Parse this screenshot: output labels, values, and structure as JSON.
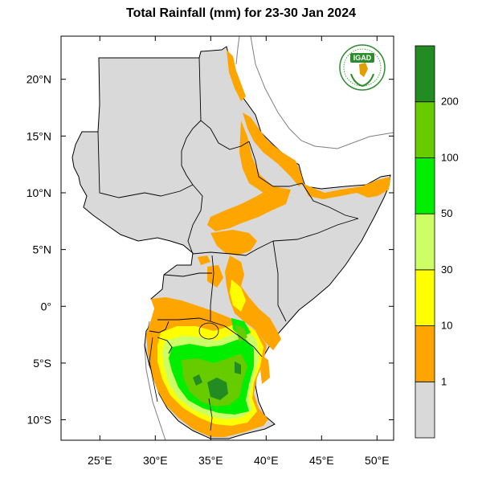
{
  "title": "Total Rainfall (mm) for 23-30 Jan 2024",
  "logo_text": "IGAD",
  "map": {
    "lon_range": [
      21.5,
      51.5
    ],
    "lat_range": [
      -11.8,
      23.8
    ],
    "lon_ticks": [
      {
        "value": 25,
        "label": "25°E"
      },
      {
        "value": 30,
        "label": "30°E"
      },
      {
        "value": 35,
        "label": "35°E"
      },
      {
        "value": 40,
        "label": "40°E"
      },
      {
        "value": 45,
        "label": "45°E"
      },
      {
        "value": 50,
        "label": "50°E"
      }
    ],
    "lat_ticks": [
      {
        "value": 20,
        "label": "20°N"
      },
      {
        "value": 15,
        "label": "15°N"
      },
      {
        "value": 10,
        "label": "10°N"
      },
      {
        "value": 5,
        "label": "5°N"
      },
      {
        "value": 0,
        "label": "0°"
      },
      {
        "value": -5,
        "label": "5°S"
      },
      {
        "value": -10,
        "label": "10°S"
      }
    ]
  },
  "colorbar": {
    "bins": [
      {
        "color": "#d9d9d9",
        "label": "1"
      },
      {
        "color": "#ffa500",
        "label": "10"
      },
      {
        "color": "#ffff00",
        "label": "30"
      },
      {
        "color": "#ccff66",
        "label": "50"
      },
      {
        "color": "#00ee00",
        "label": "100"
      },
      {
        "color": "#66cc00",
        "label": "200"
      },
      {
        "color": "#228b22",
        "label": ""
      }
    ]
  },
  "colors": {
    "land": "#d9d9d9",
    "border": "#000000",
    "coast_outline": "#7f7f7f",
    "rain_1_10": "#ffa500",
    "rain_10_30": "#ffff00",
    "rain_30_50": "#ccff66",
    "rain_50_100": "#00ee00",
    "rain_100_200": "#66cc00",
    "rain_200_plus": "#228b22"
  }
}
